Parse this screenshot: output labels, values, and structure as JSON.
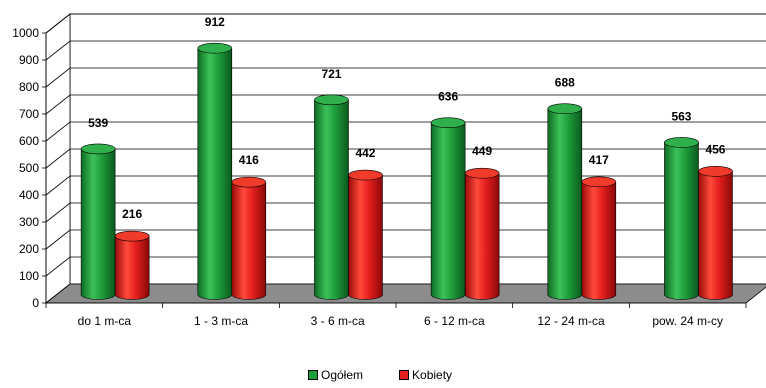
{
  "chart_data": {
    "type": "bar",
    "categories": [
      "do 1 m-ca",
      "1 - 3 m-ca",
      "3 - 6 m-ca",
      "6 - 12 m-ca",
      "12 - 24 m-ca",
      "pow. 24 m-cy"
    ],
    "series": [
      {
        "name": "Ogółem",
        "values": [
          539,
          912,
          721,
          636,
          688,
          563
        ],
        "color": "#1f9e3c"
      },
      {
        "name": "Kobiety",
        "values": [
          216,
          416,
          442,
          449,
          417,
          456
        ],
        "color": "#e51f1f"
      }
    ],
    "ylim": [
      0,
      1000
    ],
    "yticks": [
      0,
      100,
      200,
      300,
      400,
      500,
      600,
      700,
      800,
      900,
      1000
    ],
    "legend_position": "bottom",
    "grid": true,
    "style": "3d-cylinder"
  }
}
